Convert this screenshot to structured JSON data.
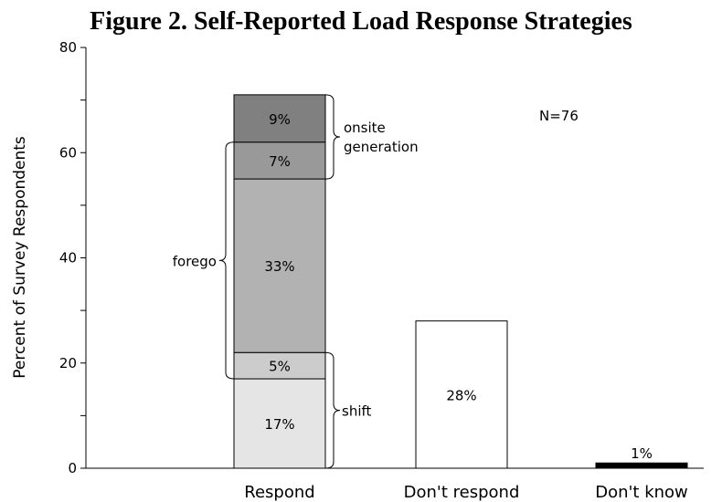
{
  "chart_data": {
    "type": "bar",
    "stacked": true,
    "title": "Figure 2. Self-Reported Load Response Strategies",
    "ylabel": "Percent of Survey Respondents",
    "ylim": [
      0,
      80
    ],
    "yticks": [
      "0",
      "20",
      "40",
      "60",
      "80"
    ],
    "categories": [
      "Respond",
      "Don't respond",
      "Don't know"
    ],
    "bars": [
      {
        "category": "Respond",
        "segments": [
          {
            "value": 17,
            "label": "17%",
            "color": "#e5e5e5"
          },
          {
            "value": 5,
            "label": "5%",
            "color": "#cccccc"
          },
          {
            "value": 33,
            "label": "33%",
            "color": "#b2b2b2"
          },
          {
            "value": 7,
            "label": "7%",
            "color": "#999999"
          },
          {
            "value": 9,
            "label": "9%",
            "color": "#808080"
          }
        ]
      },
      {
        "category": "Don't respond",
        "segments": [
          {
            "value": 28,
            "label": "28%",
            "color": "#ffffff"
          }
        ]
      },
      {
        "category": "Don't know",
        "segments": [
          {
            "value": 1,
            "label": "1%",
            "color": "#000000"
          }
        ]
      }
    ],
    "annotations": [
      {
        "text": [
          "onsite",
          "generation"
        ]
      },
      {
        "text": [
          "forego"
        ]
      },
      {
        "text": [
          "shift"
        ]
      },
      {
        "text": [
          "N=76"
        ]
      }
    ]
  }
}
